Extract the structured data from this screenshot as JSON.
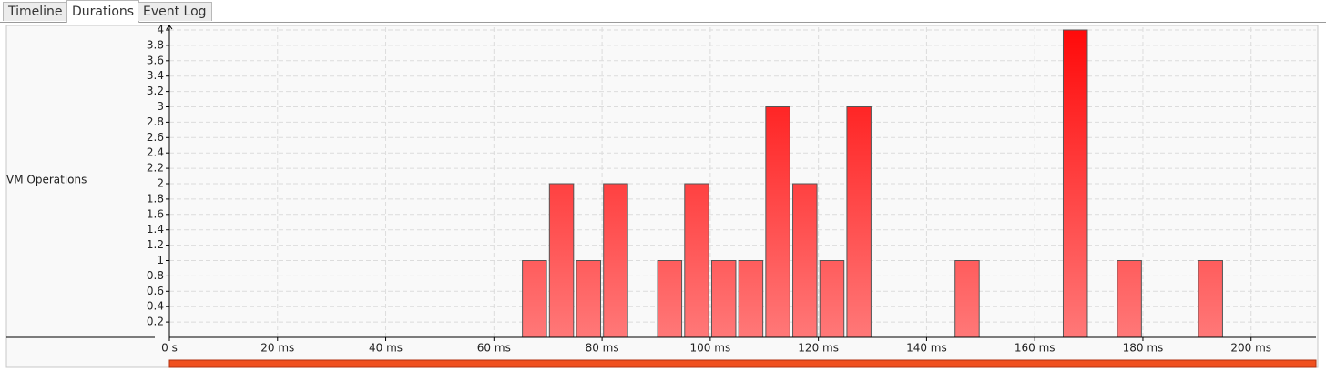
{
  "tabs": [
    "Timeline",
    "Durations",
    "Event Log"
  ],
  "chart_data": {
    "type": "histogram",
    "row_label": "VM Operations",
    "bins": [
      65,
      70,
      75,
      80,
      85,
      90,
      95,
      100,
      105,
      110,
      115,
      120,
      125,
      130,
      135,
      140,
      145,
      150,
      155,
      160,
      165,
      170,
      175,
      180,
      185,
      190,
      195
    ],
    "values": [
      1,
      2,
      1,
      2,
      0,
      1,
      2,
      1,
      1,
      3,
      2,
      1,
      3,
      0,
      0,
      0,
      1,
      0,
      0,
      0,
      4,
      0,
      1,
      0,
      0,
      1
    ],
    "gradient": [
      "#ff0a0a",
      "#ff7878"
    ],
    "xlim": [
      0,
      212
    ],
    "ylim": [
      0,
      4
    ],
    "xticks": [
      {
        "value": 0,
        "label": "0 s"
      },
      {
        "value": 20,
        "label": "20 ms"
      },
      {
        "value": 40,
        "label": "40 ms"
      },
      {
        "value": 60,
        "label": "60 ms"
      },
      {
        "value": 80,
        "label": "80 ms"
      },
      {
        "value": 100,
        "label": "100 ms"
      },
      {
        "value": 120,
        "label": "120 ms"
      },
      {
        "value": 140,
        "label": "140 ms"
      },
      {
        "value": 160,
        "label": "160 ms"
      },
      {
        "value": 180,
        "label": "180 ms"
      },
      {
        "value": 200,
        "label": "200 ms"
      }
    ],
    "yticks": [
      0.2,
      0.4,
      0.6,
      0.8,
      1,
      1.2,
      1.4,
      1.6,
      1.8,
      2,
      2.2,
      2.4,
      2.6,
      2.8,
      3,
      3.2,
      3.4,
      3.6,
      3.8,
      4
    ],
    "grid": true
  }
}
